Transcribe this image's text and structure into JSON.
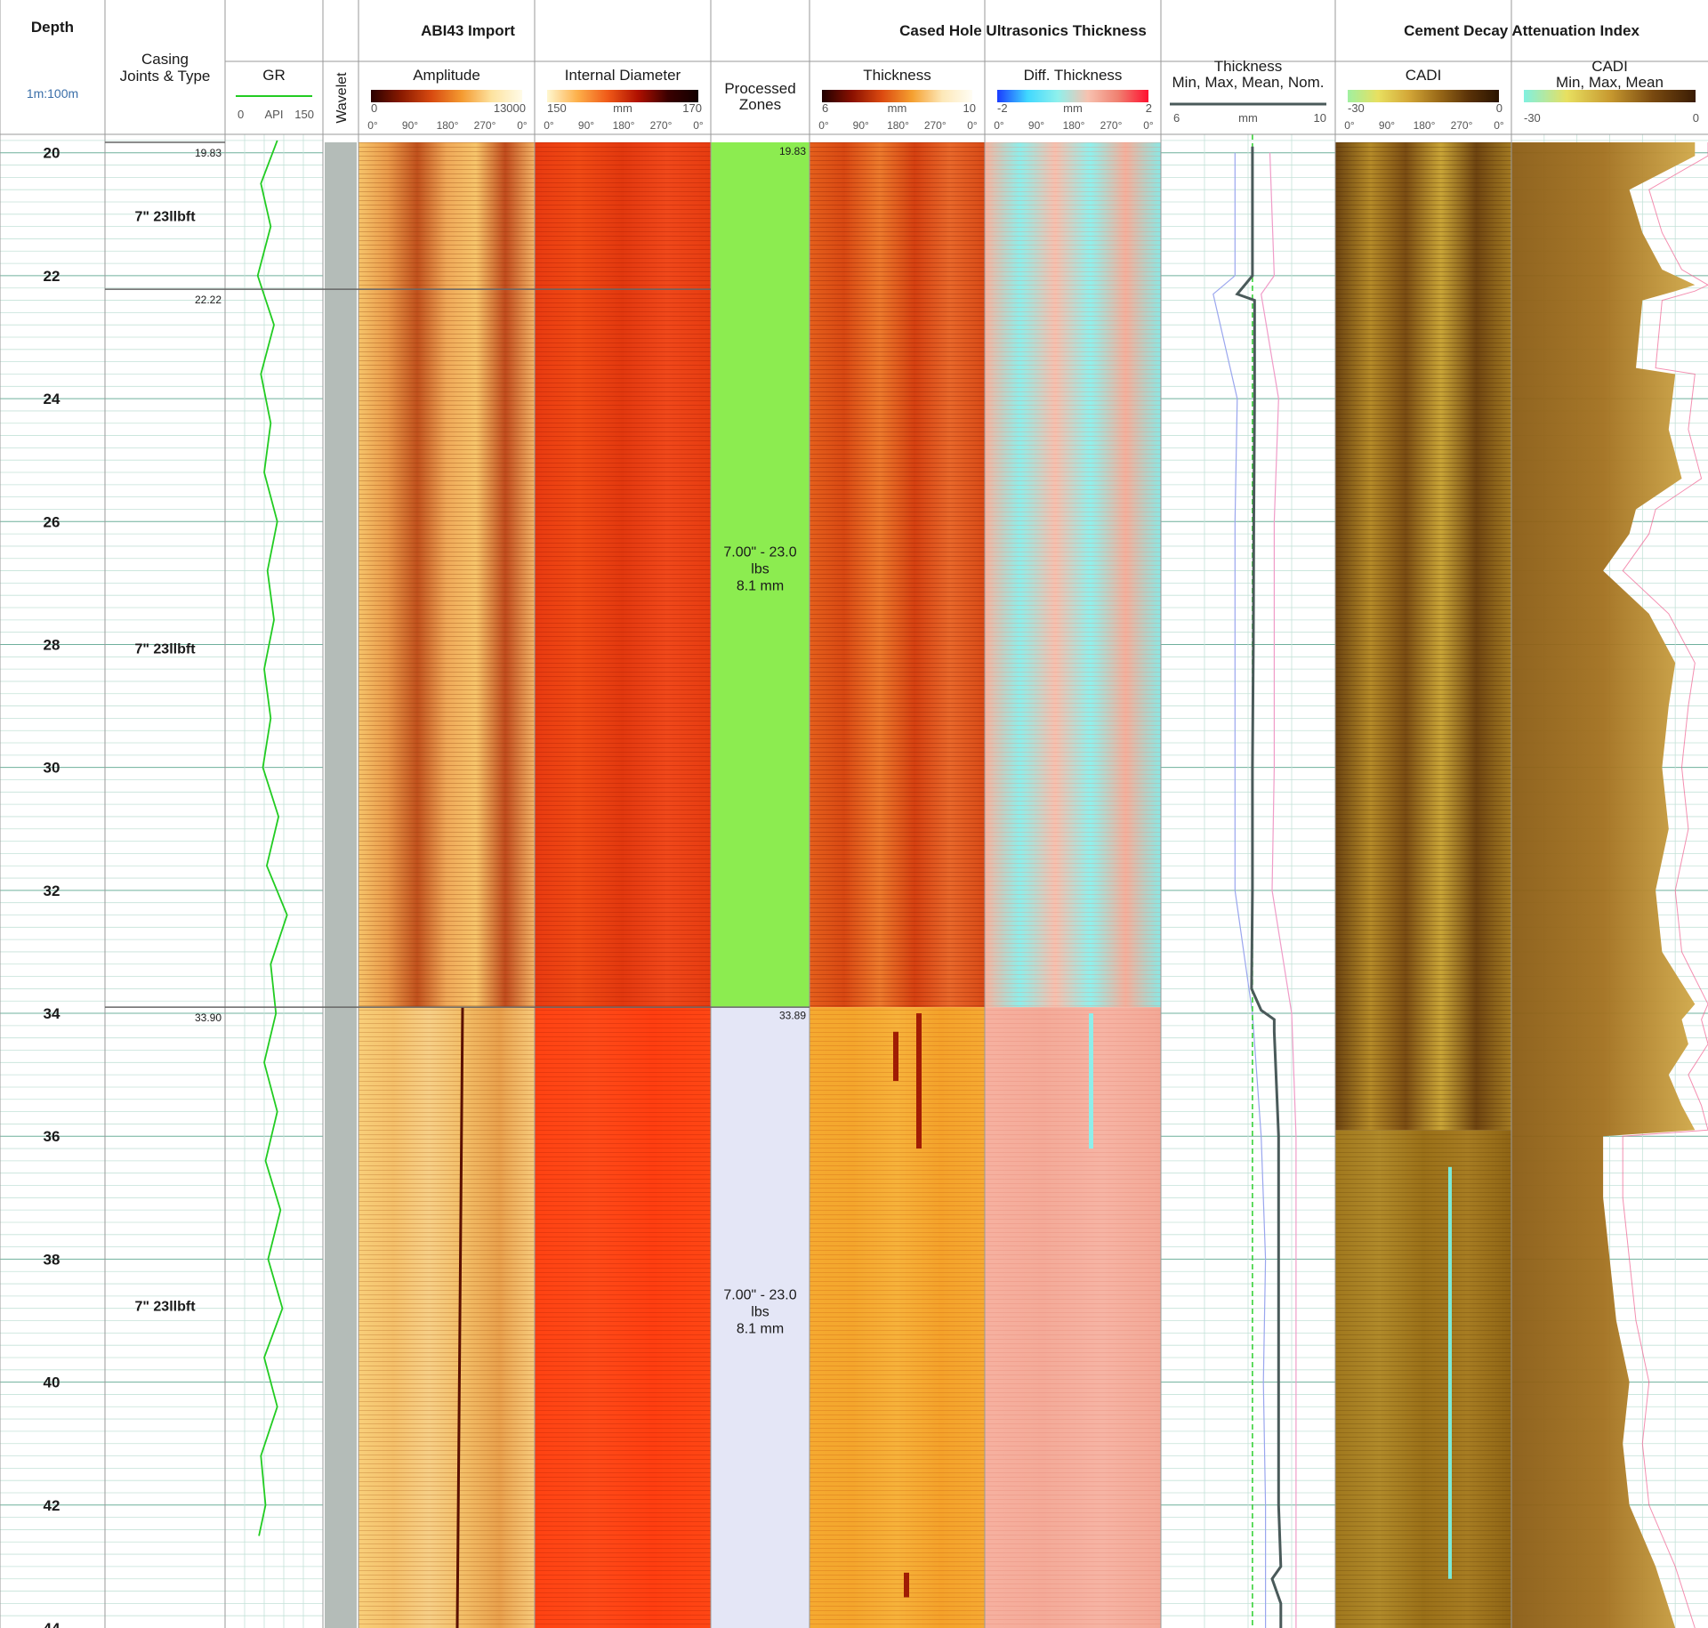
{
  "header": {
    "depth_title": "Depth",
    "depth_scale": "1m:100m",
    "casing_title": [
      "Casing",
      "Joints & Type"
    ],
    "wavelet_title": "Wavelet",
    "groups": [
      {
        "id": "abi",
        "title": "ABI43 Import"
      },
      {
        "id": "chut",
        "title": "Cased Hole Ultrasonics Thickness"
      },
      {
        "id": "cadi",
        "title": "Cement Decay Attenuation Index"
      }
    ],
    "tracks": [
      {
        "id": "gr",
        "title": "GR",
        "left": "0",
        "mid": "API",
        "right": "150",
        "line_color": "#22cc22"
      },
      {
        "id": "amp",
        "title": "Amplitude",
        "left": "0",
        "mid": "",
        "right": "13000",
        "colorbar": [
          "#2a0000",
          "#8a1a00",
          "#d84a10",
          "#f49a30",
          "#fde3a0",
          "#fffbe8"
        ],
        "az": [
          "0°",
          "90°",
          "180°",
          "270°",
          "0°"
        ]
      },
      {
        "id": "id",
        "title": "Internal Diameter",
        "left": "150",
        "mid": "mm",
        "right": "170",
        "colorbar": [
          "#fff7d0",
          "#fdb04a",
          "#f05a18",
          "#b01000",
          "#3a0000",
          "#120000"
        ],
        "az": [
          "0°",
          "90°",
          "180°",
          "270°",
          "0°"
        ]
      },
      {
        "id": "pz",
        "title_lines": [
          "Processed",
          "Zones"
        ]
      },
      {
        "id": "thk",
        "title": "Thickness",
        "left": "6",
        "mid": "mm",
        "right": "10",
        "colorbar": [
          "#200000",
          "#8a1000",
          "#dc4a10",
          "#f5a030",
          "#fde8b8",
          "#fffdf4"
        ],
        "az": [
          "0°",
          "90°",
          "180°",
          "270°",
          "0°"
        ]
      },
      {
        "id": "dthk",
        "title": "Diff. Thickness",
        "left": "-2",
        "mid": "mm",
        "right": "2",
        "colorbar": [
          "#1a3cff",
          "#40d8ff",
          "#8ff0ec",
          "#f7c2b0",
          "#f08070",
          "#ff1030"
        ],
        "az": [
          "0°",
          "90°",
          "180°",
          "270°",
          "0°"
        ]
      },
      {
        "id": "tcurves",
        "title_lines": [
          "Thickness",
          "Min, Max, Mean, Nom."
        ],
        "left": "6",
        "mid": "mm",
        "right": "10"
      },
      {
        "id": "cadi_img",
        "title": "CADI",
        "left": "-30",
        "mid": "",
        "right": "0",
        "colorbar": [
          "#a0f0a0",
          "#e8e060",
          "#d4a838",
          "#9a6a18",
          "#5a3208",
          "#2a1400"
        ],
        "az": [
          "0°",
          "90°",
          "180°",
          "270°",
          "0°"
        ]
      },
      {
        "id": "cadi_curves",
        "title_lines": [
          "CADI",
          "Min, Max, Mean"
        ],
        "left": "-30",
        "mid": "",
        "right": "0",
        "colorbar": [
          "#80f0e0",
          "#e8e060",
          "#c89a30",
          "#7a4a10",
          "#3a1c04"
        ]
      }
    ]
  },
  "depth_labels": [
    "20",
    "22",
    "24",
    "26",
    "28",
    "30",
    "32",
    "34",
    "36",
    "38",
    "40",
    "42",
    "44"
  ],
  "casing_joints": [
    {
      "top_label": "19.83",
      "type": "7\" 23llbft"
    },
    {
      "top_label": "22.22",
      "type": "7\" 23llbft"
    },
    {
      "top_label": "33.90",
      "type": "7\" 23llbft"
    }
  ],
  "processed_zones": [
    {
      "top_label": "19.83",
      "lines": [
        "7.00\" - 23.0",
        "lbs",
        "8.1 mm"
      ],
      "color": "#8cec50"
    },
    {
      "top_label": "33.89",
      "lines": [
        "7.00\" - 23.0",
        "lbs",
        "8.1 mm"
      ],
      "color": "#e4e6f6"
    }
  ],
  "colors": {
    "grid_major": "#6fb09c",
    "grid_minor": "#c4e2d8",
    "wavelet_fill": "#b4bcb8",
    "separator": "#666666",
    "frame": "#9a9a9a",
    "depth_text": "#1a1a1a",
    "cadi_fill": "#a2701e",
    "cadi_max_line": "#f06090",
    "thk_mean_line": "#4a5a5a",
    "thk_min_line": "#9aa6ee",
    "thk_max_line": "#f09cc8",
    "thk_nominal_line": "#3ad23a"
  },
  "chart_data": {
    "type": "well_log",
    "depth_unit": "m",
    "depth_range": [
      19.7,
      44
    ],
    "depth_ticks": [
      20,
      22,
      24,
      26,
      28,
      30,
      32,
      34,
      36,
      38,
      40,
      42,
      44
    ],
    "casing_joint_tops_m": [
      19.83,
      22.22,
      33.9
    ],
    "processed_zone_tops_m": [
      19.83,
      33.89
    ],
    "gr": {
      "unit": "API",
      "range": [
        0,
        150
      ],
      "depth": [
        19.8,
        20.5,
        21.2,
        22.0,
        22.8,
        23.6,
        24.4,
        25.2,
        26.0,
        26.8,
        27.6,
        28.4,
        29.2,
        30.0,
        30.8,
        31.6,
        32.4,
        33.2,
        34.0,
        34.8,
        35.6,
        36.4,
        37.2,
        38.0,
        38.8,
        39.6,
        40.4,
        41.2,
        42.0,
        42.5
      ],
      "value": [
        80,
        55,
        70,
        50,
        75,
        55,
        70,
        60,
        80,
        65,
        75,
        60,
        70,
        58,
        82,
        64,
        95,
        70,
        78,
        60,
        80,
        62,
        85,
        66,
        88,
        60,
        80,
        55,
        62,
        52
      ]
    },
    "thickness": {
      "unit": "mm",
      "range": [
        6,
        10
      ],
      "nominal": 8.1,
      "mean": {
        "depth": [
          19.9,
          22.0,
          22.3,
          22.4,
          24.0,
          26.0,
          28.0,
          30.0,
          32.0,
          33.6,
          33.95,
          34.1,
          34.3,
          36.0,
          38.0,
          40.0,
          42.0,
          43.0,
          43.2,
          43.6,
          44.0
        ],
        "value": [
          8.1,
          8.1,
          7.75,
          8.15,
          8.15,
          8.13,
          8.12,
          8.1,
          8.1,
          8.08,
          8.3,
          8.6,
          8.6,
          8.7,
          8.7,
          8.7,
          8.7,
          8.75,
          8.55,
          8.75,
          8.75
        ]
      },
      "min": {
        "depth": [
          20,
          22,
          22.3,
          24,
          26,
          28,
          30,
          32,
          34,
          36,
          38,
          40,
          42,
          44
        ],
        "value": [
          7.7,
          7.7,
          7.2,
          7.75,
          7.7,
          7.7,
          7.7,
          7.7,
          8.1,
          8.3,
          8.4,
          8.35,
          8.4,
          8.4
        ]
      },
      "max": {
        "depth": [
          20,
          22,
          22.3,
          24,
          26,
          28,
          30,
          32,
          34,
          36,
          38,
          40,
          42,
          44
        ],
        "value": [
          8.5,
          8.6,
          8.3,
          8.7,
          8.6,
          8.6,
          8.6,
          8.55,
          9.0,
          9.1,
          9.1,
          9.1,
          9.1,
          9.1
        ]
      }
    },
    "cadi": {
      "range": [
        -30,
        0
      ],
      "mean": {
        "depth": [
          19.83,
          20.05,
          20.6,
          21.3,
          21.9,
          22.15,
          22.25,
          22.4,
          23.5,
          23.6,
          24.5,
          25.3,
          25.8,
          26.2,
          26.8,
          27.5,
          28.3,
          29.0,
          30.0,
          31.0,
          32.0,
          33.0,
          33.85,
          34.1,
          34.5,
          35.0,
          35.5,
          35.9,
          36.0,
          37.0,
          38.0,
          39.0,
          40.0,
          41.0,
          42.0,
          43.0,
          44.0
        ],
        "value": [
          -2,
          -2,
          -12,
          -10,
          -7,
          -2,
          -5,
          -10,
          -11,
          -5,
          -6,
          -4,
          -11,
          -12,
          -16,
          -9,
          -5,
          -6,
          -7,
          -6,
          -8,
          -7,
          -2,
          -4,
          -3,
          -6,
          -4,
          -2,
          -16,
          -16,
          -15,
          -14,
          -12,
          -13,
          -12,
          -8,
          -5
        ]
      }
    }
  }
}
